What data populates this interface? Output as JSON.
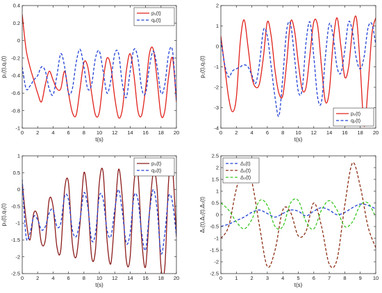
{
  "chart_data": [
    {
      "type": "line",
      "xlabel": "t(s)",
      "ylabel": "p₁(t),q₁(t)",
      "xlim": [
        0,
        20
      ],
      "ylim": [
        -1,
        0.4
      ],
      "xticks": [
        "0",
        "2",
        "4",
        "6",
        "8",
        "10",
        "12",
        "14",
        "16",
        "18",
        "20"
      ],
      "yticks": [
        "-1",
        "-0.8",
        "-0.6",
        "-0.4",
        "-0.2",
        "0",
        "0.2",
        "0.4"
      ],
      "legend_position": "top-right",
      "series": [
        {
          "name": "p₁(t)",
          "color": "#e0201a",
          "style": "solid",
          "x": [
            0,
            0.5,
            1,
            1.5,
            2,
            2.5,
            3,
            3.5,
            4,
            4.5,
            5,
            5.5,
            6,
            6.5,
            7,
            7.5,
            8,
            8.5,
            9,
            9.5,
            10,
            10.5,
            11,
            11.5,
            12,
            12.5,
            13,
            13.5,
            14,
            14.5,
            15,
            15.5,
            16,
            16.5,
            17,
            17.5,
            18,
            18.5,
            19,
            19.5,
            20
          ],
          "y": [
            0.3,
            -0.1,
            -0.3,
            -0.45,
            -0.6,
            -0.7,
            -0.5,
            -0.35,
            -0.45,
            -0.55,
            -0.55,
            -0.35,
            -0.6,
            -0.82,
            -0.85,
            -0.55,
            -0.25,
            -0.3,
            -0.6,
            -0.85,
            -0.82,
            -0.45,
            -0.2,
            -0.3,
            -0.65,
            -0.88,
            -0.78,
            -0.35,
            -0.15,
            -0.4,
            -0.8,
            -0.85,
            -0.55,
            -0.15,
            -0.1,
            -0.45,
            -0.85,
            -0.8,
            -0.4,
            -0.2,
            -0.7
          ]
        },
        {
          "name": "q₁(t)",
          "color": "#1f3fd6",
          "style": "dashed",
          "x": [
            0,
            0.5,
            1,
            1.5,
            2,
            2.5,
            3,
            3.5,
            4,
            4.5,
            5,
            5.5,
            6,
            6.5,
            7,
            7.5,
            8,
            8.5,
            9,
            9.5,
            10,
            10.5,
            11,
            11.5,
            12,
            12.5,
            13,
            13.5,
            14,
            14.5,
            15,
            15.5,
            16,
            16.5,
            17,
            17.5,
            18,
            18.5,
            19,
            19.5,
            20
          ],
          "y": [
            -0.3,
            -0.55,
            -0.52,
            -0.45,
            -0.4,
            -0.3,
            -0.35,
            -0.55,
            -0.62,
            -0.4,
            -0.15,
            -0.3,
            -0.6,
            -0.55,
            -0.25,
            -0.1,
            -0.3,
            -0.55,
            -0.5,
            -0.2,
            -0.12,
            -0.35,
            -0.6,
            -0.45,
            -0.15,
            -0.15,
            -0.5,
            -0.65,
            -0.35,
            -0.1,
            -0.2,
            -0.55,
            -0.6,
            -0.3,
            -0.12,
            -0.3,
            -0.6,
            -0.5,
            -0.15,
            -0.12,
            -0.7
          ]
        }
      ]
    },
    {
      "type": "line",
      "xlabel": "t(s)",
      "ylabel": "p₂(t),q₂(t)",
      "xlim": [
        0,
        20
      ],
      "ylim": [
        -4,
        2
      ],
      "xticks": [
        "0",
        "2",
        "4",
        "6",
        "8",
        "10",
        "12",
        "14",
        "16",
        "18",
        "20"
      ],
      "yticks": [
        "-4",
        "-3",
        "-2",
        "-1",
        "0",
        "1",
        "2"
      ],
      "legend_position": "bottom-right",
      "series": [
        {
          "name": "p₂(t)",
          "color": "#e0201a",
          "style": "solid",
          "x": [
            0,
            0.5,
            1,
            1.5,
            2,
            2.5,
            3,
            3.5,
            4,
            4.5,
            5,
            5.5,
            6,
            6.5,
            7,
            7.5,
            8,
            8.5,
            9,
            9.5,
            10,
            10.5,
            11,
            11.5,
            12,
            12.5,
            13,
            13.5,
            14,
            14.5,
            15,
            15.5,
            16,
            16.5,
            17,
            17.5,
            18,
            18.5,
            19,
            19.5,
            20
          ],
          "y": [
            0.5,
            -1,
            -2.5,
            -3.2,
            -2.5,
            0.2,
            1.3,
            0,
            -1.5,
            -2,
            -1.8,
            -0.5,
            1.2,
            0.5,
            -1.2,
            -2.3,
            -2.4,
            -0.8,
            1.2,
            0.8,
            -0.8,
            -2.1,
            -2,
            -0.4,
            1.2,
            1,
            -1,
            -2.7,
            -2.2,
            0.2,
            1.4,
            0,
            -1.5,
            -1,
            0.8,
            1.4,
            -1,
            -3.9,
            -2,
            0.6,
            1.4
          ]
        },
        {
          "name": "q₂(t)",
          "color": "#1f3fd6",
          "style": "dashed",
          "x": [
            0,
            0.5,
            1,
            1.5,
            2,
            2.5,
            3,
            3.5,
            4,
            4.5,
            5,
            5.5,
            6,
            6.5,
            7,
            7.5,
            8,
            8.5,
            9,
            9.5,
            10,
            10.5,
            11,
            11.5,
            12,
            12.5,
            13,
            13.5,
            14,
            14.5,
            15,
            15.5,
            16,
            16.5,
            17,
            17.5,
            18,
            18.5,
            19,
            19.5,
            20
          ],
          "y": [
            0.3,
            -0.9,
            -1.5,
            -1.2,
            -1.1,
            -1,
            -0.9,
            -1,
            -1.4,
            -1.8,
            -0.8,
            0.8,
            0.5,
            -1,
            -2.5,
            -3.4,
            -1.5,
            0.8,
            1.1,
            -0.5,
            -2.2,
            -2.1,
            0.2,
            1.2,
            -0.5,
            -2.5,
            -2.7,
            -0.5,
            1.1,
            0.5,
            -1,
            -1.3,
            -0.2,
            1.2,
            0.7,
            -0.6,
            -1.1,
            -0.5,
            0.9,
            1.1,
            0.1
          ]
        }
      ]
    },
    {
      "type": "line",
      "xlabel": "t(s)",
      "ylabel": "p₃(t),q₃(t)",
      "xlim": [
        0,
        20
      ],
      "ylim": [
        -2.5,
        1
      ],
      "xticks": [
        "0",
        "2",
        "4",
        "6",
        "8",
        "10",
        "12",
        "14",
        "16",
        "18",
        "20"
      ],
      "yticks": [
        "-2.5",
        "-2",
        "-1.5",
        "-1",
        "-0.5",
        "0",
        "0.5",
        "1"
      ],
      "legend_position": "top-right",
      "series": [
        {
          "name": "p₃(t)",
          "color": "#8b1a1a",
          "style": "solid",
          "x": [
            0,
            0.5,
            1,
            1.5,
            2,
            2.5,
            3,
            3.5,
            4,
            4.5,
            5,
            5.5,
            6,
            6.5,
            7,
            7.5,
            8,
            8.5,
            9,
            9.5,
            10,
            10.5,
            11,
            11.5,
            12,
            12.5,
            13,
            13.5,
            14,
            14.5,
            15,
            15.5,
            16,
            16.5,
            17,
            17.5,
            18,
            18.5,
            19,
            19.5,
            20
          ],
          "y": [
            0.2,
            -0.9,
            -1.5,
            -0.7,
            -0.8,
            -1.6,
            -1.5,
            -0.3,
            -0.5,
            -1.7,
            -1.8,
            0,
            0.2,
            -1.6,
            -2,
            -1,
            0.5,
            -0.3,
            -2,
            -1.8,
            0.2,
            0.5,
            -1.5,
            -2.2,
            -0.8,
            0.6,
            -0.3,
            -2.1,
            -2,
            0.2,
            0.5,
            -1.5,
            -2.3,
            -0.7,
            0.5,
            0,
            -2.3,
            -2.3,
            0.3,
            0.6,
            -1.4
          ]
        },
        {
          "name": "q₃(t)",
          "color": "#1f3fd6",
          "style": "dashed",
          "x": [
            0,
            0.5,
            1,
            1.5,
            2,
            2.5,
            3,
            3.5,
            4,
            4.5,
            5,
            5.5,
            6,
            6.5,
            7,
            7.5,
            8,
            8.5,
            9,
            9.5,
            10,
            10.5,
            11,
            11.5,
            12,
            12.5,
            13,
            13.5,
            14,
            14.5,
            15,
            15.5,
            16,
            16.5,
            17,
            17.5,
            18,
            18.5,
            19,
            19.5,
            20
          ],
          "y": [
            0.3,
            -1.4,
            -1.3,
            -0.8,
            -0.9,
            -1.2,
            -1.1,
            -0.7,
            -0.6,
            -1.1,
            -1,
            -0.2,
            -0.3,
            -1.2,
            -1.4,
            -0.9,
            -0.1,
            -0.5,
            -1.5,
            -1.3,
            -0.2,
            -0.3,
            -1.2,
            -1.4,
            -0.6,
            0,
            -0.7,
            -1.6,
            -1.3,
            -0.2,
            -0.3,
            -1.3,
            -1.8,
            -0.7,
            0,
            -0.6,
            -1.9,
            -1.3,
            -0.2,
            -0.4,
            -1.4
          ]
        }
      ]
    },
    {
      "type": "line",
      "xlabel": "t(s)",
      "ylabel": "Δ₁(t),Δ₂(t),Δ₃(t)",
      "xlim": [
        0,
        10
      ],
      "ylim": [
        -2.5,
        2.5
      ],
      "xticks": [
        "0",
        "1",
        "2",
        "3",
        "4",
        "5",
        "6",
        "7",
        "8",
        "9",
        "10"
      ],
      "yticks": [
        "-2.5",
        "-2",
        "-1.5",
        "-1",
        "-0.5",
        "0",
        "0.5",
        "1",
        "1.5",
        "2",
        "2.5"
      ],
      "legend_position": "top-left",
      "series": [
        {
          "name": "Δ₁(t)",
          "color": "#1f3fd6",
          "style": "dashed",
          "x": [
            0,
            0.5,
            1,
            1.5,
            2,
            2.5,
            3,
            3.5,
            4,
            4.5,
            5,
            5.5,
            6,
            6.5,
            7,
            7.5,
            8,
            8.5,
            9,
            9.5,
            10
          ],
          "y": [
            -0.5,
            -0.4,
            -0.25,
            -0.1,
            0.1,
            0.2,
            0.05,
            -0.1,
            0.05,
            0.2,
            0.15,
            -0.05,
            0.15,
            0.3,
            0.2,
            0,
            0.1,
            0.3,
            0.45,
            0.4,
            0.25
          ]
        },
        {
          "name": "Δ₂(t)",
          "color": "#8b2d12",
          "style": "dashed",
          "x": [
            0,
            0.5,
            1,
            1.5,
            2,
            2.5,
            3,
            3.5,
            4,
            4.5,
            5,
            5.5,
            6,
            6.5,
            7,
            7.5,
            8,
            8.5,
            9,
            9.5,
            10
          ],
          "y": [
            -1,
            -0.5,
            1.1,
            2.1,
            1.4,
            -0.5,
            -2.2,
            -1.5,
            0.2,
            0.1,
            -0.9,
            -0.7,
            0.5,
            -0.5,
            -2.1,
            -1.9,
            0.4,
            2.2,
            1.2,
            -0.5,
            -1.4
          ]
        },
        {
          "name": "Δ₃(t)",
          "color": "#36c71f",
          "style": "dashed",
          "x": [
            0,
            0.5,
            1,
            1.5,
            2,
            2.5,
            3,
            3.5,
            4,
            4.5,
            5,
            5.5,
            6,
            6.5,
            7,
            7.5,
            8,
            8.5,
            9,
            9.5,
            10
          ],
          "y": [
            0.5,
            0.2,
            -0.3,
            -0.6,
            -0.2,
            0.6,
            0.4,
            -0.5,
            -0.5,
            0.5,
            0.6,
            -0.3,
            -0.6,
            0.2,
            0.6,
            0.2,
            -0.5,
            -0.3,
            0.4,
            0.5,
            -0.1
          ]
        }
      ]
    }
  ]
}
